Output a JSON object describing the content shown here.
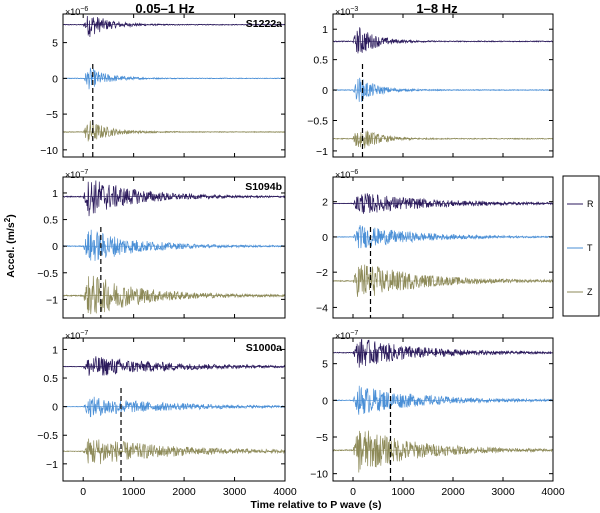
{
  "figure": {
    "column_titles": [
      "0.05–1 Hz",
      "1–8 Hz"
    ],
    "xlabel": "Time relative to P wave (s)",
    "ylabel_main": "Accel. (m/s",
    "ylabel_sup": "2",
    "ylabel_close": ")"
  },
  "legend": {
    "entries": [
      {
        "label": "R",
        "color": "#2b1a5c"
      },
      {
        "label": "T",
        "color": "#4a8fd6"
      },
      {
        "label": "Z",
        "color": "#8d8a58"
      }
    ]
  },
  "chart_data": [
    {
      "type": "line",
      "row": 0,
      "col": 0,
      "station": "S1222a",
      "band": "0.05–1 Hz",
      "exponent_base": "×10",
      "exponent": "−6",
      "x_range": [
        -400,
        4000
      ],
      "x_ticks": [
        0,
        1000,
        2000,
        3000,
        4000
      ],
      "y_range": [
        -11,
        9
      ],
      "y_ticks": [
        -10,
        -5,
        0,
        5
      ],
      "y_tick_labels": [
        "−10",
        "−5",
        "0",
        "5"
      ],
      "traces": [
        {
          "component": "R",
          "offset": 7.5,
          "amp": 1.7,
          "onset": 0,
          "decay": 380
        },
        {
          "component": "T",
          "offset": 0,
          "amp": 1.5,
          "onset": 0,
          "decay": 380
        },
        {
          "component": "Z",
          "offset": -7.5,
          "amp": 1.7,
          "onset": 0,
          "decay": 380
        }
      ],
      "s_wave_marker_x": 190
    },
    {
      "type": "line",
      "row": 0,
      "col": 1,
      "station": "",
      "band": "1–8 Hz",
      "exponent_base": "×10",
      "exponent": "−3",
      "x_range": [
        -400,
        4000
      ],
      "x_ticks": [
        0,
        1000,
        2000,
        3000,
        4000
      ],
      "y_range": [
        -1.1,
        1.25
      ],
      "y_ticks": [
        -1,
        -0.5,
        0,
        0.5,
        1
      ],
      "y_tick_labels": [
        "−1",
        "−0.5",
        "0",
        "0.5",
        "1"
      ],
      "traces": [
        {
          "component": "R",
          "offset": 0.8,
          "amp": 0.25,
          "onset": 0,
          "decay": 350
        },
        {
          "component": "T",
          "offset": 0,
          "amp": 0.22,
          "onset": 0,
          "decay": 350
        },
        {
          "component": "Z",
          "offset": -0.8,
          "amp": 0.22,
          "onset": 0,
          "decay": 350
        }
      ],
      "s_wave_marker_x": 190
    },
    {
      "type": "line",
      "row": 1,
      "col": 0,
      "station": "S1094b",
      "band": "0.05–1 Hz",
      "exponent_base": "×10",
      "exponent": "−7",
      "x_range": [
        -400,
        4000
      ],
      "x_ticks": [
        0,
        1000,
        2000,
        3000,
        4000
      ],
      "y_range": [
        -1.35,
        1.3
      ],
      "y_ticks": [
        -1,
        -0.5,
        0,
        0.5,
        1
      ],
      "y_tick_labels": [
        "−1",
        "−0.5",
        "0",
        "0.5",
        "1"
      ],
      "traces": [
        {
          "component": "R",
          "offset": 0.93,
          "amp": 0.3,
          "onset": 0,
          "decay": 900
        },
        {
          "component": "T",
          "offset": 0,
          "amp": 0.27,
          "onset": 0,
          "decay": 900
        },
        {
          "component": "Z",
          "offset": -0.93,
          "amp": 0.33,
          "onset": 0,
          "decay": 1000
        }
      ],
      "s_wave_marker_x": 350
    },
    {
      "type": "line",
      "row": 1,
      "col": 1,
      "station": "",
      "band": "1–8 Hz",
      "exponent_base": "×10",
      "exponent": "−6",
      "x_range": [
        -400,
        4000
      ],
      "x_ticks": [
        0,
        1000,
        2000,
        3000,
        4000
      ],
      "y_range": [
        -4.6,
        3.4
      ],
      "y_ticks": [
        -4,
        -2,
        0,
        2
      ],
      "y_tick_labels": [
        "−4",
        "−2",
        "0",
        "2"
      ],
      "traces": [
        {
          "component": "R",
          "offset": 1.9,
          "amp": 0.5,
          "onset": 0,
          "decay": 1400
        },
        {
          "component": "T",
          "offset": 0,
          "amp": 0.55,
          "onset": 0,
          "decay": 1100
        },
        {
          "component": "Z",
          "offset": -2.5,
          "amp": 0.9,
          "onset": 0,
          "decay": 1100
        }
      ],
      "s_wave_marker_x": 350
    },
    {
      "type": "line",
      "row": 2,
      "col": 0,
      "station": "S1000a",
      "band": "0.05–1 Hz",
      "exponent_base": "×10",
      "exponent": "−7",
      "x_range": [
        -400,
        4000
      ],
      "x_ticks": [
        0,
        1000,
        2000,
        3000,
        4000
      ],
      "y_range": [
        -1.3,
        1.2
      ],
      "y_ticks": [
        -1,
        -0.5,
        0,
        0.5,
        1
      ],
      "y_tick_labels": [
        "−1",
        "−0.5",
        "0",
        "0.5",
        "1"
      ],
      "traces": [
        {
          "component": "R",
          "offset": 0.7,
          "amp": 0.15,
          "onset": 0,
          "decay": 1500
        },
        {
          "component": "T",
          "offset": 0,
          "amp": 0.14,
          "onset": 0,
          "decay": 1500
        },
        {
          "component": "Z",
          "offset": -0.78,
          "amp": 0.2,
          "onset": 0,
          "decay": 1500
        }
      ],
      "s_wave_marker_x": 750
    },
    {
      "type": "line",
      "row": 2,
      "col": 1,
      "station": "",
      "band": "1–8 Hz",
      "exponent_base": "×10",
      "exponent": "−7",
      "x_range": [
        -400,
        4000
      ],
      "x_ticks": [
        0,
        1000,
        2000,
        3000,
        4000
      ],
      "y_range": [
        -11,
        8.5
      ],
      "y_ticks": [
        -10,
        -5,
        0,
        5
      ],
      "y_tick_labels": [
        "−10",
        "−5",
        "0",
        "5"
      ],
      "traces": [
        {
          "component": "R",
          "offset": 6.5,
          "amp": 1.6,
          "onset": 0,
          "decay": 1200
        },
        {
          "component": "T",
          "offset": 0,
          "amp": 1.6,
          "onset": 0,
          "decay": 1200
        },
        {
          "component": "Z",
          "offset": -6.8,
          "amp": 2.5,
          "onset": 0,
          "decay": 1100
        }
      ],
      "s_wave_marker_x": 750
    }
  ]
}
